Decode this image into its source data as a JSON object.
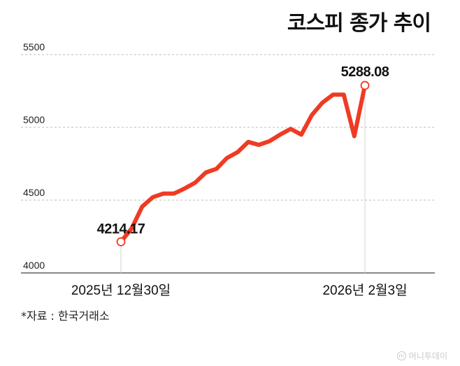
{
  "chart_data": {
    "type": "line",
    "title": "코스피 종가 추이",
    "ylim": [
      4000,
      5500
    ],
    "yticks": [
      4000,
      4500,
      5000,
      5500
    ],
    "xlabels": [
      "2025년 12월30일",
      "2026년 2월3일"
    ],
    "series": [
      {
        "values": [
          4214.17,
          4305,
          4455,
          4520,
          4545,
          4545,
          4580,
          4620,
          4690,
          4715,
          4790,
          4830,
          4900,
          4880,
          4905,
          4950,
          4990,
          4950,
          5085,
          5170,
          5225,
          5225,
          4940,
          5288.08
        ]
      }
    ],
    "annotations": {
      "start_value": "4214.17",
      "end_value": "5288.08"
    },
    "grid": true,
    "line_color": "#ef3b23"
  },
  "source": "*자료 : 한국거래소",
  "logo_text": "머니투데이"
}
